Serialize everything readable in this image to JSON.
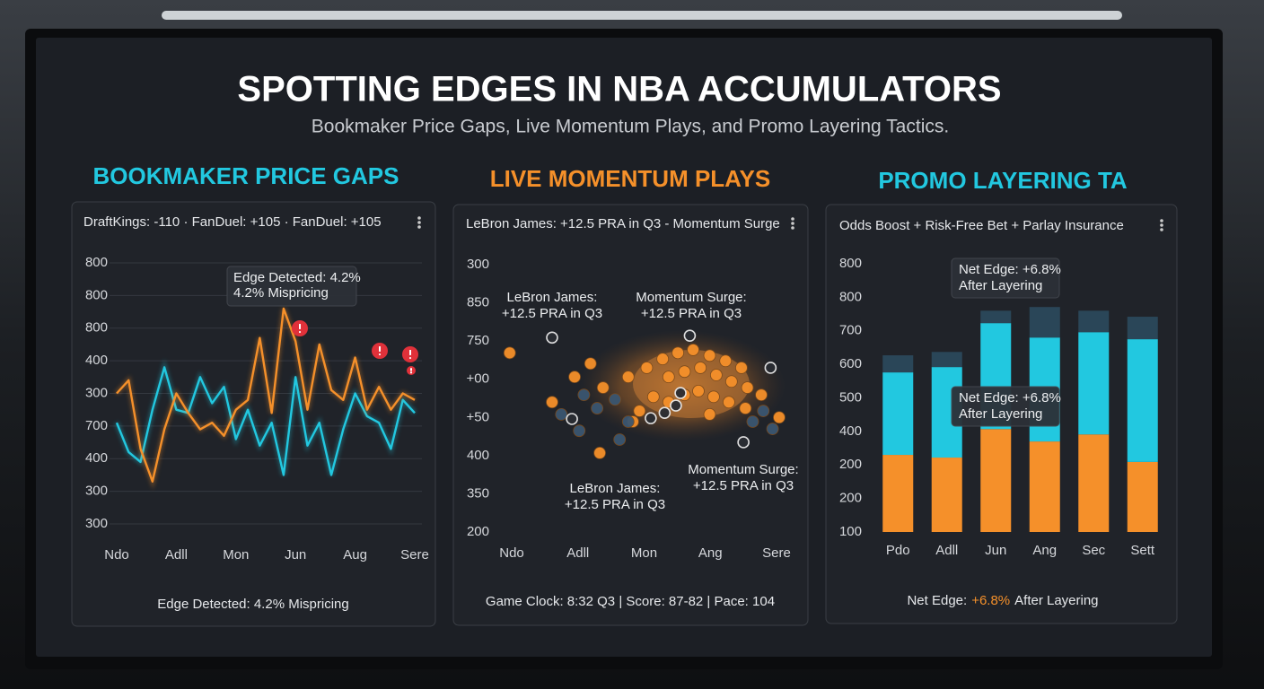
{
  "title": "SPOTTING EDGES IN NBA ACCUMULATORS",
  "subtitle": "Bookmaker Price Gaps, Live Momentum Plays, and Promo Layering Tactics.",
  "chart_data": [
    {
      "type": "line",
      "title": "BOOKMAKER PRICE GAPS",
      "color": "#22c8e0",
      "header": "DraftKings: -110 · FanDuel: +105 · FanDuel: +105",
      "footer": [
        "Edge Detected: 4.2% Mispricing"
      ],
      "annotations": [
        [
          "Edge Detected: 4.2%",
          "4.2% Mispricing"
        ]
      ],
      "grid": true,
      "xlim": [
        0,
        25
      ],
      "xticks": [
        {
          "value": 0,
          "label": "Ndo"
        },
        {
          "value": 5,
          "label": "Adll"
        },
        {
          "value": 10,
          "label": "Mon"
        },
        {
          "value": 15,
          "label": "Jun"
        },
        {
          "value": 20,
          "label": "Aug"
        },
        {
          "value": 25,
          "label": "Sere"
        }
      ],
      "ylim": [
        0,
        8
      ],
      "yticks": [
        {
          "value": 0,
          "label": "300"
        },
        {
          "value": 1,
          "label": "300"
        },
        {
          "value": 2,
          "label": "400"
        },
        {
          "value": 3,
          "label": "700"
        },
        {
          "value": 4,
          "label": "300"
        },
        {
          "value": 5,
          "label": "400"
        },
        {
          "value": 6,
          "label": "800"
        },
        {
          "value": 7,
          "label": "800"
        },
        {
          "value": 8,
          "label": "800"
        }
      ],
      "x": [
        0,
        1,
        2,
        3,
        4,
        5,
        6,
        7,
        8,
        9,
        10,
        11,
        12,
        13,
        14,
        15,
        16,
        17,
        18,
        19,
        20,
        21,
        22,
        23,
        24,
        25
      ],
      "series": [
        {
          "color": "#22c8e0",
          "values": [
            3.1,
            2.2,
            1.9,
            3.5,
            4.8,
            3.5,
            3.4,
            4.5,
            3.7,
            4.2,
            2.6,
            3.5,
            2.4,
            3.1,
            1.5,
            4.5,
            2.4,
            3.1,
            1.5,
            2.9,
            4.0,
            3.3,
            3.1,
            2.3,
            3.8,
            3.4
          ]
        },
        {
          "color": "#f5902a",
          "values": [
            4.0,
            4.4,
            2.3,
            1.3,
            2.9,
            4.0,
            3.4,
            2.9,
            3.1,
            2.7,
            3.5,
            3.8,
            5.7,
            3.4,
            6.6,
            5.6,
            3.5,
            5.5,
            4.1,
            3.8,
            5.1,
            3.5,
            4.2,
            3.5,
            4.0,
            3.8
          ]
        }
      ]
    },
    {
      "type": "scatter",
      "title": "LIVE MOMENTUM PLAYS",
      "color": "#f5902a",
      "header": "LeBron James: +12.5 PRA in Q3 - Momentum Surge",
      "footer": [
        "Game Clock: 8:32 Q3 | Score: 87-82 | Pace: 104"
      ],
      "annotations": [
        [
          "LeBron James:",
          "+12.5 PRA in Q3"
        ],
        [
          "Momentum Surge:",
          "+12.5 PRA in Q3"
        ],
        [
          "LeBron James:",
          "+12.5 PRA in Q3"
        ],
        [
          "Momentum Surge:",
          "+12.5 PRA in Q3"
        ]
      ],
      "grid": false,
      "xlim": [
        0,
        4
      ],
      "xticks": [
        {
          "value": 0,
          "label": "Ndo"
        },
        {
          "value": 1,
          "label": "Adll"
        },
        {
          "value": 2,
          "label": "Mon"
        },
        {
          "value": 3,
          "label": "Ang"
        },
        {
          "value": 4,
          "label": "Sere"
        }
      ],
      "ylim": [
        0,
        7
      ],
      "yticks": [
        {
          "value": 0,
          "label": "200"
        },
        {
          "value": 1,
          "label": "350"
        },
        {
          "value": 2,
          "label": "400"
        },
        {
          "value": 3,
          "label": "+50"
        },
        {
          "value": 4,
          "label": "+00"
        },
        {
          "value": 5,
          "label": "750"
        },
        {
          "value": 6,
          "label": "850"
        },
        {
          "value": 7,
          "label": "300"
        }
      ],
      "series": [
        {
          "color": "#f5902a",
          "x": [
            -0.03,
            1.19,
            0.95,
            1.38,
            1.76,
            2.04,
            2.28,
            2.51,
            2.74,
            2.99,
            3.23,
            3.47,
            2.37,
            2.61,
            2.85,
            3.09,
            3.32,
            3.56,
            3.77,
            2.14,
            2.37,
            2.61,
            2.82,
            3.05,
            3.28,
            3.53,
            1.93,
            2.99,
            4.04,
            0.61,
            1.33,
            1.83
          ],
          "y": [
            4.69,
            4.41,
            4.06,
            3.78,
            4.06,
            4.3,
            4.53,
            4.69,
            4.77,
            4.62,
            4.48,
            4.3,
            4.06,
            4.2,
            4.3,
            4.11,
            3.94,
            3.78,
            3.59,
            3.54,
            3.4,
            3.59,
            3.69,
            3.54,
            3.4,
            3.24,
            3.17,
            3.08,
            3.0,
            3.4,
            2.07,
            2.89
          ]
        },
        {
          "color": "#3b5670",
          "x": [
            0.75,
            1.09,
            1.29,
            1.56,
            1.76,
            1.63,
            1.02,
            3.64,
            3.8,
            3.94
          ],
          "y": [
            3.08,
            3.59,
            3.24,
            3.47,
            2.89,
            2.42,
            2.65,
            2.89,
            3.17,
            2.7
          ]
        },
        {
          "color": "#2a2d33",
          "x": [
            0.61,
            2.69,
            3.91,
            0.91,
            2.1,
            2.31,
            2.48,
            2.55,
            3.5
          ],
          "y": [
            5.09,
            5.14,
            4.3,
            2.96,
            2.98,
            3.12,
            3.31,
            3.64,
            2.35
          ]
        }
      ]
    },
    {
      "type": "stacked_bar",
      "title": "PROMO LAYERING TA",
      "color": "#22c8e0",
      "header": "Odds Boost + Risk-Free Bet + Parlay Insurance",
      "footer": [
        "Net Edge:",
        "+6.8%",
        "After Layering"
      ],
      "annotations": [
        [
          "Net Edge: +6.8%",
          "After Layering"
        ],
        [
          "Net Edge: +6.8%",
          "After Layering"
        ]
      ],
      "grid": false,
      "categories": [
        "Pdo",
        "Adll",
        "Jun",
        "Ang",
        "Sec",
        "Sett"
      ],
      "ylim": [
        0,
        8
      ],
      "yticks": [
        {
          "value": 0,
          "label": "100"
        },
        {
          "value": 1,
          "label": "200"
        },
        {
          "value": 2,
          "label": "200"
        },
        {
          "value": 3,
          "label": "400"
        },
        {
          "value": 4,
          "label": "500"
        },
        {
          "value": 5,
          "label": "600"
        },
        {
          "value": 6,
          "label": "700"
        },
        {
          "value": 7,
          "label": "800"
        },
        {
          "value": 8,
          "label": "800"
        }
      ],
      "series": [
        {
          "color": "#f5902a",
          "values": [
            2.3,
            2.22,
            3.07,
            2.7,
            2.91,
            2.09
          ]
        },
        {
          "color": "#22c8e0",
          "values": [
            2.46,
            2.7,
            3.16,
            3.1,
            3.05,
            3.66
          ]
        },
        {
          "color": "#2a4658",
          "values": [
            0.51,
            0.45,
            0.37,
            0.91,
            0.64,
            0.67
          ]
        }
      ]
    }
  ]
}
